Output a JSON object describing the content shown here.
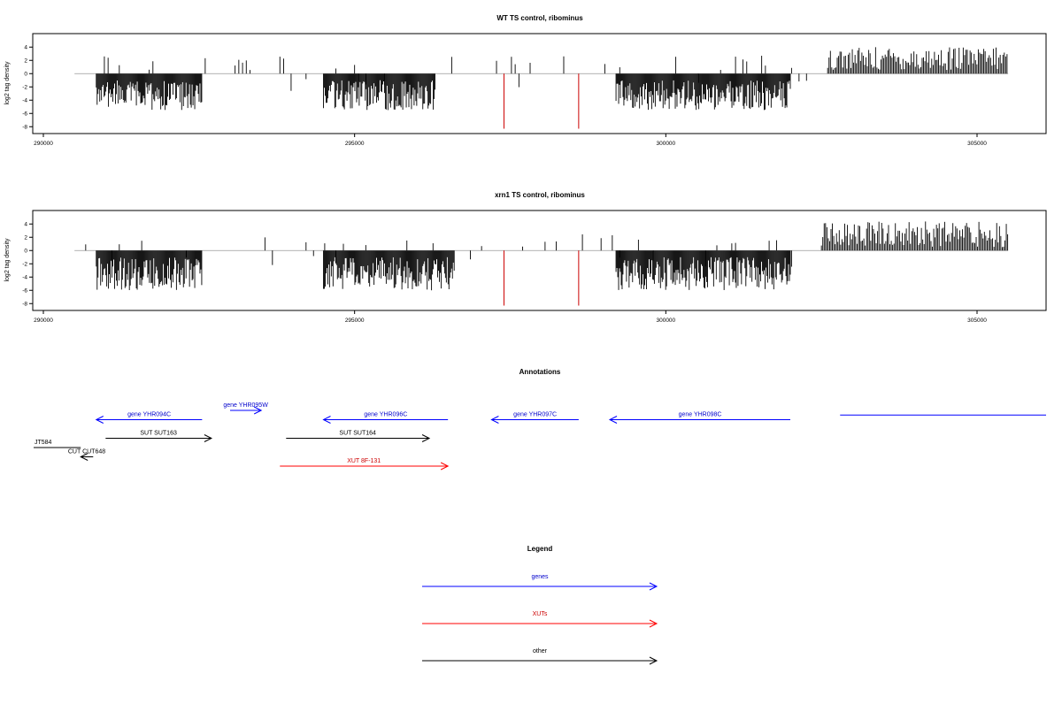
{
  "chart_data": [
    {
      "type": "bar",
      "title": "WT TS control, ribominus",
      "ylabel": "log2 tag density",
      "xlabel": "",
      "xlim": [
        290000,
        306000
      ],
      "ylim": [
        -8.5,
        5.5
      ],
      "x_ticks": [
        290000,
        295000,
        300000,
        305000
      ],
      "y_ticks": [
        -8,
        -6,
        -4,
        -2,
        0,
        2,
        4
      ],
      "grid": false,
      "profile": {
        "neg_regions": [
          [
            290850,
            292550
          ],
          [
            294500,
            296300
          ],
          [
            299200,
            302000
          ]
        ],
        "pos_regions": [
          [
            302600,
            305500
          ]
        ],
        "neg_min": -5.5,
        "pos_max": 4.0,
        "highlight_bars": [
          {
            "x": 297400,
            "y": -8.3
          },
          {
            "x": 298600,
            "y": -8.3
          }
        ],
        "highlight_color": "#cc0000"
      }
    },
    {
      "type": "bar",
      "title": "xrn1 TS control, ribominus",
      "ylabel": "log2 tag density",
      "xlabel": "",
      "xlim": [
        290000,
        306000
      ],
      "ylim": [
        -8.5,
        5.5
      ],
      "x_ticks": [
        290000,
        295000,
        300000,
        305000
      ],
      "y_ticks": [
        -8,
        -6,
        -4,
        -2,
        0,
        2,
        4
      ],
      "grid": false,
      "profile": {
        "neg_regions": [
          [
            290850,
            292550
          ],
          [
            294500,
            296600
          ],
          [
            299200,
            302000
          ]
        ],
        "pos_regions": [
          [
            302500,
            305500
          ]
        ],
        "neg_min": -6.0,
        "pos_max": 4.5,
        "highlight_bars": [
          {
            "x": 297400,
            "y": -8.3
          },
          {
            "x": 298600,
            "y": -8.3
          }
        ],
        "highlight_color": "#cc0000"
      }
    }
  ],
  "annotations": {
    "title": "Annotations",
    "features": [
      {
        "label": "gene YHR094C",
        "start": 290850,
        "end": 292550,
        "strand": "-",
        "row": 1,
        "color": "#0000ff",
        "text_color": "#0000cc"
      },
      {
        "label": "gene YHR095W",
        "start": 293000,
        "end": 293500,
        "strand": "+",
        "row": 0,
        "color": "#0000ff",
        "text_color": "#0000cc"
      },
      {
        "label": "gene YHR096C",
        "start": 294500,
        "end": 296500,
        "strand": "-",
        "row": 1,
        "color": "#0000ff",
        "text_color": "#0000cc"
      },
      {
        "label": "gene YHR097C",
        "start": 297200,
        "end": 298600,
        "strand": "-",
        "row": 1,
        "color": "#0000ff",
        "text_color": "#0000cc"
      },
      {
        "label": "gene YHR098C",
        "start": 299100,
        "end": 302000,
        "strand": "-",
        "row": 1,
        "color": "#0000ff",
        "text_color": "#0000cc"
      },
      {
        "label": "",
        "start": 302800,
        "end": 306500,
        "strand": ".",
        "row": 0.5,
        "color": "#0000ff",
        "text_color": "#0000cc"
      },
      {
        "label": "SUT SUT163",
        "start": 291000,
        "end": 292700,
        "strand": "+",
        "row": 3,
        "color": "#000000",
        "text_color": "#000000"
      },
      {
        "label": "SUT SUT164",
        "start": 293900,
        "end": 296200,
        "strand": "+",
        "row": 3,
        "color": "#000000",
        "text_color": "#000000"
      },
      {
        "label": "JT584",
        "start": 289700,
        "end": 290600,
        "strand": ".",
        "row": 4,
        "color": "#000000",
        "text_color": "#000000"
      },
      {
        "label": "CUT CUT648",
        "start": 290600,
        "end": 290800,
        "strand": "-",
        "row": 5,
        "color": "#000000",
        "text_color": "#000000"
      },
      {
        "label": "XUT 8F-131",
        "start": 293800,
        "end": 296500,
        "strand": "+",
        "row": 6,
        "color": "#ff0000",
        "text_color": "#cc0000"
      }
    ]
  },
  "legend": {
    "title": "Legend",
    "items": [
      {
        "label": "genes",
        "color": "#0000ff",
        "text_color": "#0000cc"
      },
      {
        "label": "XUTs",
        "color": "#ff0000",
        "text_color": "#cc0000"
      },
      {
        "label": "other",
        "color": "#000000",
        "text_color": "#000000"
      }
    ]
  }
}
